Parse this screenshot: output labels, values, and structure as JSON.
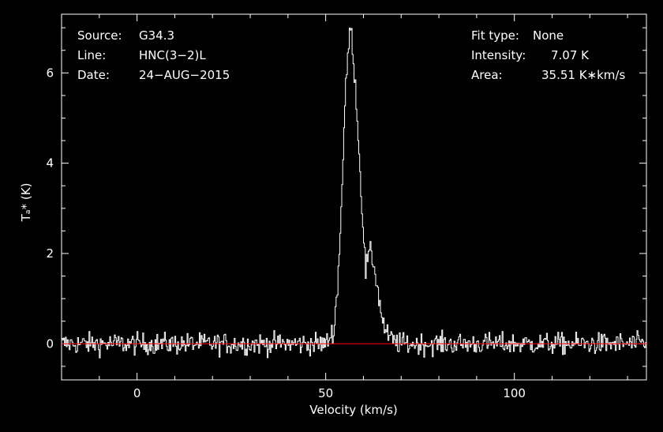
{
  "header": {
    "source_label": "Source:",
    "source_value": "G34.3",
    "line_label": "Line:",
    "line_value": "HNC(3−2)L",
    "date_label": "Date:",
    "date_value": "24−AUG−2015",
    "fit_label": "Fit type:",
    "fit_value": "None",
    "intensity_label": "Intensity:",
    "intensity_value": "7.07 K",
    "area_label": "Area:",
    "area_value": "35.51 K∗km/s"
  },
  "colors": {
    "background": "#000000",
    "spectrum": "#ffffff",
    "baseline": "#ff0000"
  },
  "chart_data": {
    "type": "line",
    "title": "",
    "xlabel": "Velocity (km/s)",
    "ylabel": "Tₐ* (K)",
    "xlim": [
      -20,
      135
    ],
    "ylim": [
      -0.8,
      7.3
    ],
    "x_ticks": [
      0,
      50,
      100
    ],
    "y_ticks": [
      0,
      2,
      4,
      6
    ],
    "grid": false,
    "baseline": 0,
    "series": [
      {
        "x": [
          -20,
          50,
          52,
          53,
          54,
          55,
          56,
          56.5,
          57,
          58,
          59,
          60,
          60.5,
          61,
          62,
          63,
          64,
          65,
          66,
          68,
          70,
          135
        ],
        "y": [
          0,
          0,
          0.3,
          1.2,
          3.0,
          5.3,
          6.7,
          7.0,
          6.6,
          5.4,
          3.8,
          2.3,
          1.6,
          1.9,
          2.0,
          1.6,
          1.0,
          0.5,
          0.2,
          0.05,
          0,
          0
        ]
      }
    ]
  }
}
